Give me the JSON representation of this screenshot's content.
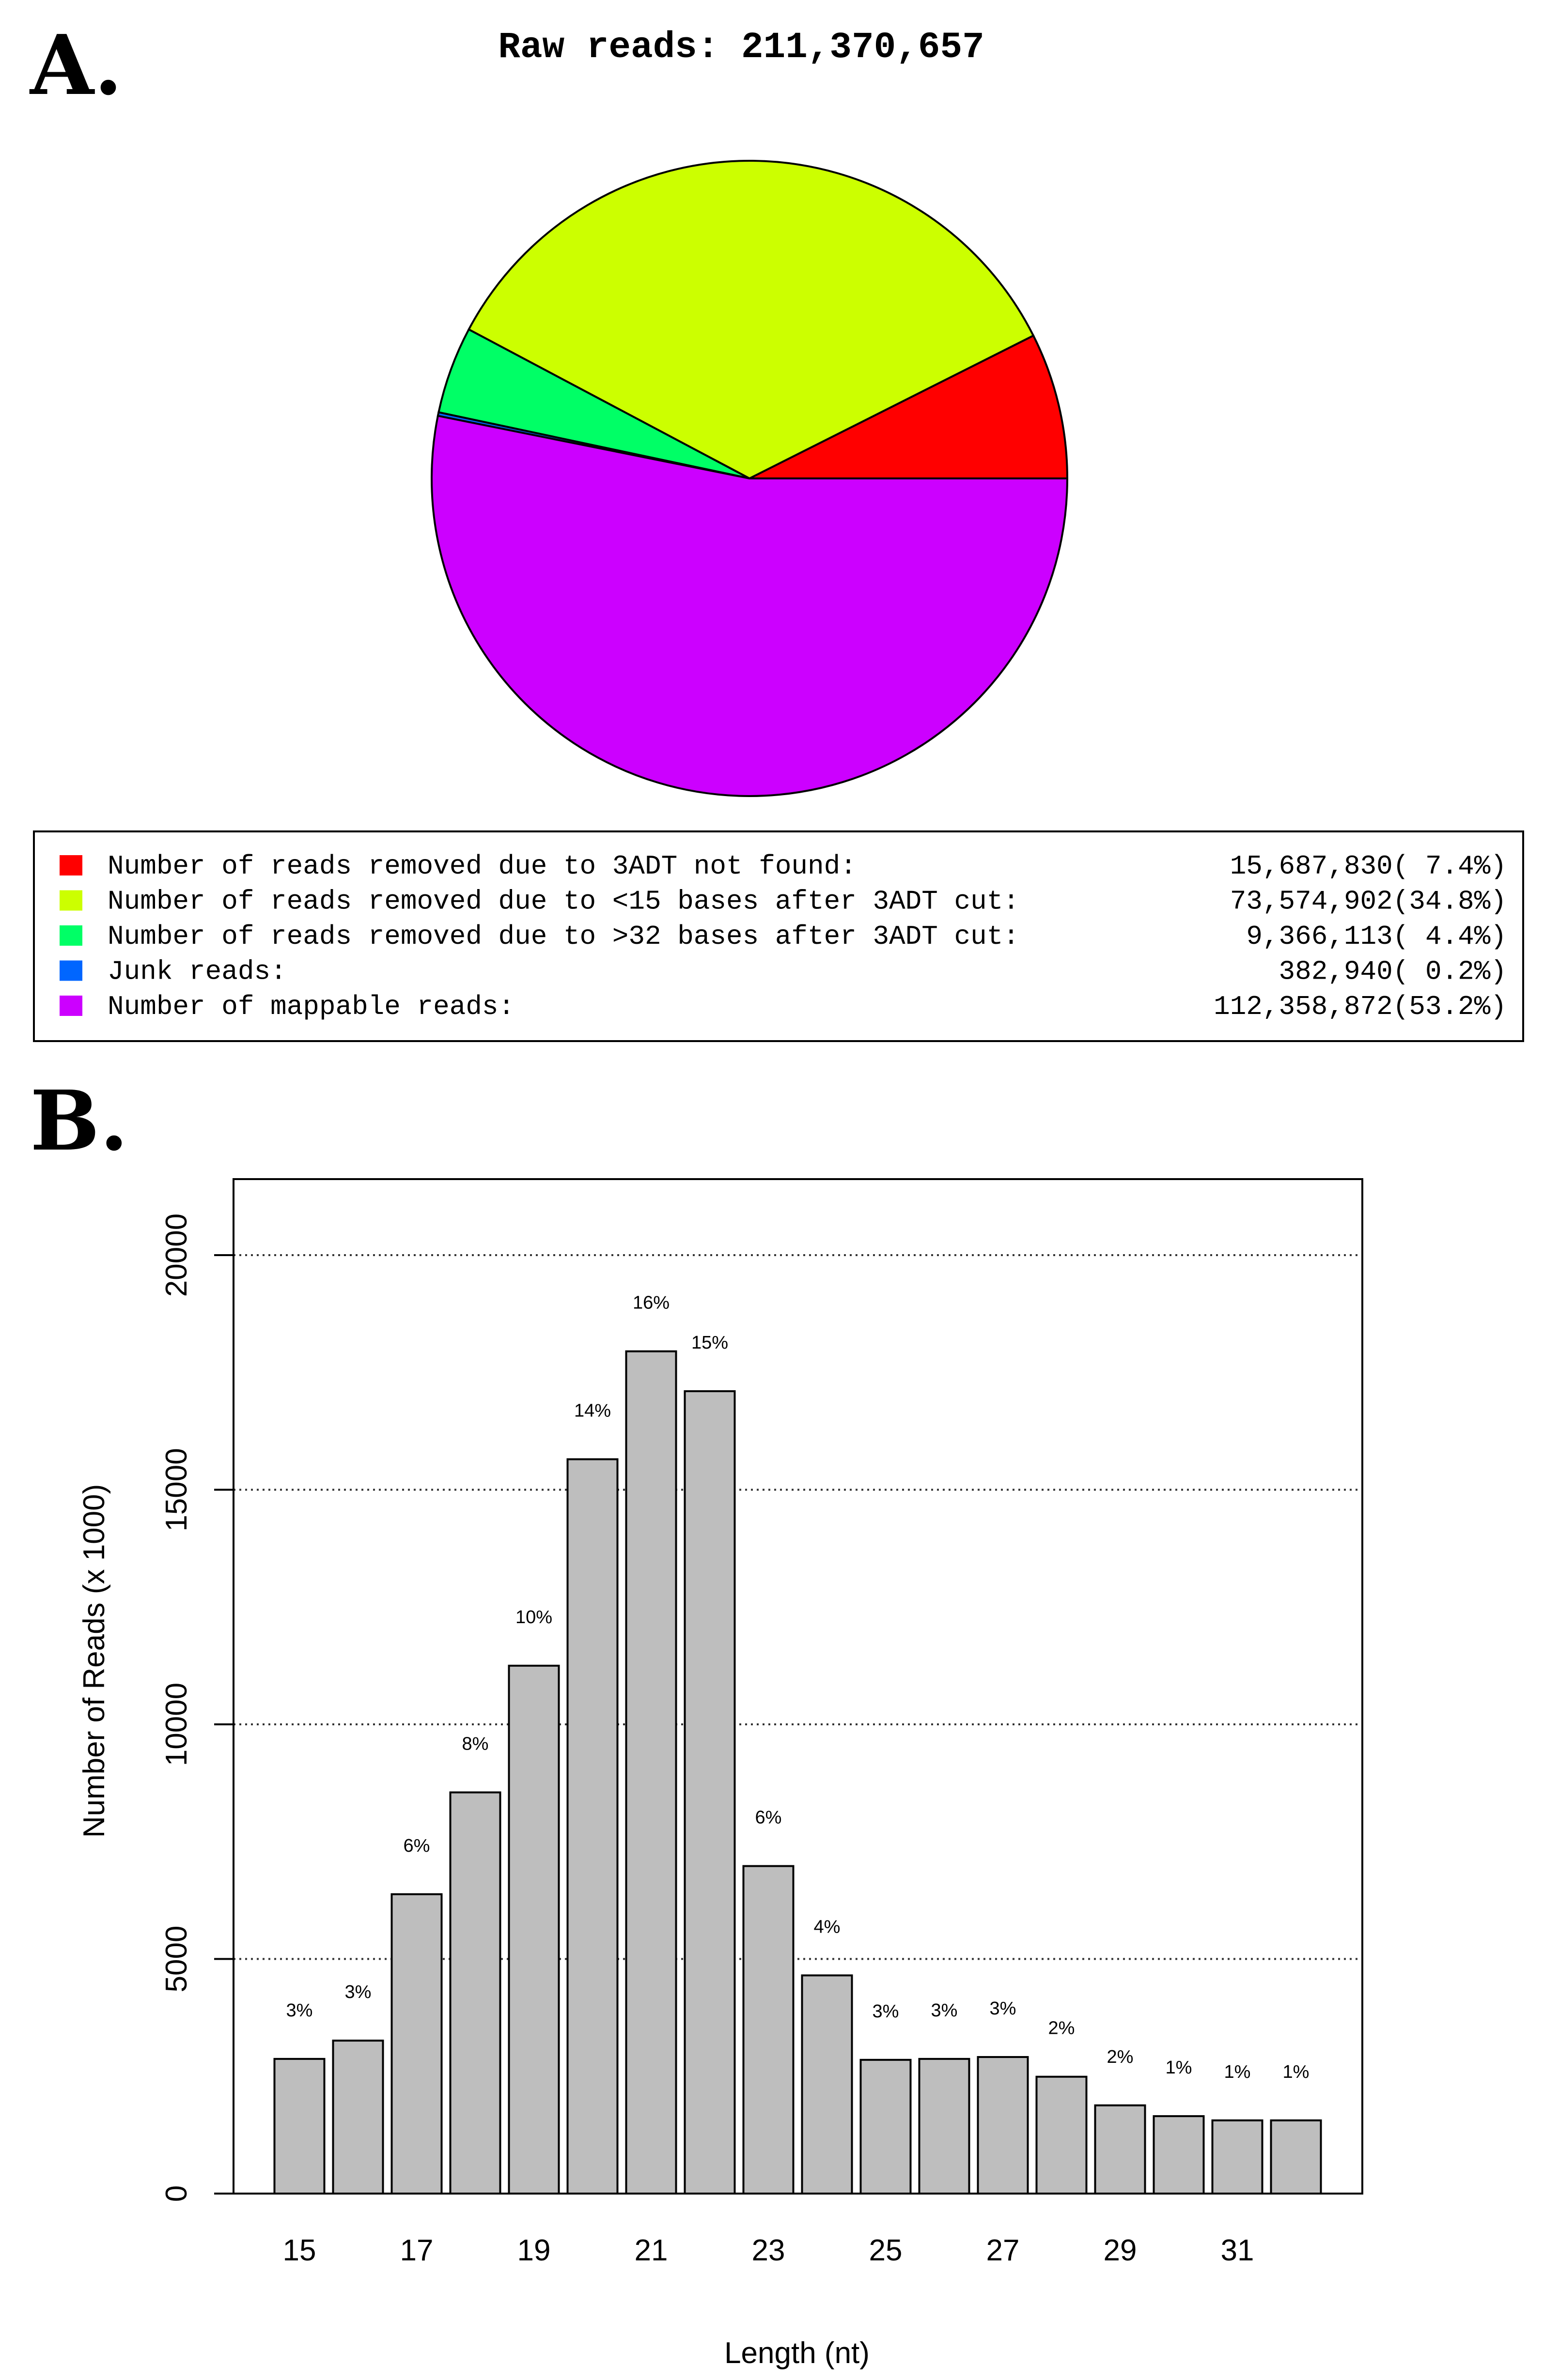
{
  "panels": {
    "a_label": "A.",
    "b_label": "B."
  },
  "chart_data": [
    {
      "type": "pie",
      "title": "Raw reads: 211,370,657",
      "slices": [
        {
          "label": "Number of reads removed due to 3ADT not found:",
          "value": 15687830,
          "value_text": "15,687,830( 7.4%)",
          "color": "#ff0000"
        },
        {
          "label": "Number of reads removed due to <15 bases after 3ADT cut:",
          "value": 73574902,
          "value_text": "73,574,902(34.8%)",
          "color": "#ccff00"
        },
        {
          "label": "Number of reads removed due to >32 bases after 3ADT cut:",
          "value": 9366113,
          "value_text": "9,366,113( 4.4%)",
          "color": "#00ff66"
        },
        {
          "label": "Junk reads:",
          "value": 382940,
          "value_text": "382,940( 0.2%)",
          "color": "#0066ff"
        },
        {
          "label": "Number of mappable reads:",
          "value": 112358872,
          "value_text": "112,358,872(53.2%)",
          "color": "#cc00ff"
        }
      ]
    },
    {
      "type": "bar",
      "xlabel": "Length (nt)",
      "ylabel": "Number of Reads (x 1000)",
      "ylim": [
        0,
        21600
      ],
      "yticks": [
        0,
        5000,
        10000,
        15000,
        20000
      ],
      "ytick_labels": [
        "0",
        "5000",
        "10000",
        "15000",
        "20000"
      ],
      "xtick_labels": [
        "15",
        "17",
        "19",
        "21",
        "23",
        "25",
        "27",
        "29",
        "31"
      ],
      "xtick_categories": [
        15,
        17,
        19,
        21,
        23,
        25,
        27,
        29,
        31
      ],
      "grid": "horizontal-dotted",
      "bar_color": "#bebebe",
      "categories": [
        15,
        16,
        17,
        18,
        19,
        20,
        21,
        22,
        23,
        24,
        25,
        26,
        27,
        28,
        29,
        30,
        31,
        32
      ],
      "values": [
        2870,
        3260,
        6380,
        8550,
        11250,
        15650,
        17950,
        17100,
        6980,
        4650,
        2850,
        2870,
        2910,
        2490,
        1880,
        1650,
        1560,
        1560
      ],
      "labels": [
        "3%",
        "3%",
        "6%",
        "8%",
        "10%",
        "14%",
        "16%",
        "15%",
        "6%",
        "4%",
        "3%",
        "3%",
        "3%",
        "2%",
        "2%",
        "1%",
        "1%",
        "1%"
      ]
    }
  ]
}
